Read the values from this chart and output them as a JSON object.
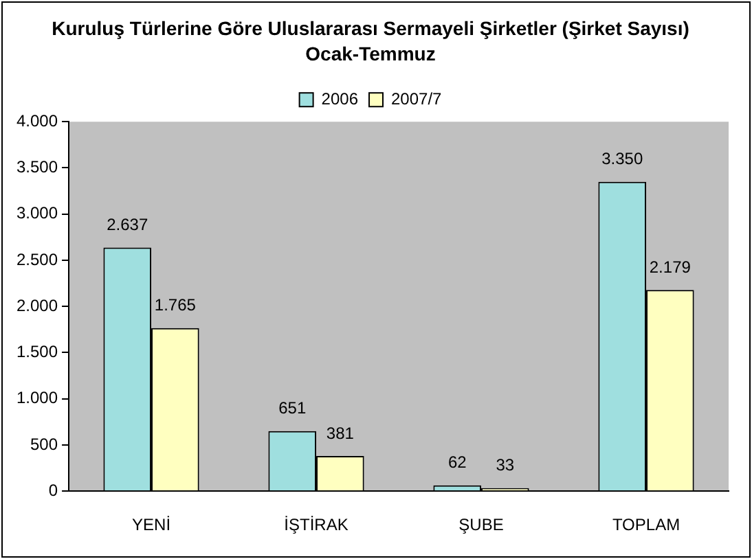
{
  "chart_data": {
    "type": "bar",
    "title": "Kuruluş Türlerine Göre Uluslararası Sermayeli Şirketler (Şirket Sayısı)",
    "subtitle": "Ocak-Temmuz",
    "categories": [
      "YENİ",
      "İŞTİRAK",
      "ŞUBE",
      "TOPLAM"
    ],
    "series": [
      {
        "name": "2006",
        "color": "#9fdfdf",
        "values": [
          2637,
          651,
          62,
          3350
        ],
        "value_labels": [
          "2.637",
          "651",
          "62",
          "3.350"
        ]
      },
      {
        "name": "2007/7",
        "color": "#ffffc0",
        "values": [
          1765,
          381,
          33,
          2179
        ],
        "value_labels": [
          "1.765",
          "381",
          "33",
          "2.179"
        ]
      }
    ],
    "ylim": [
      0,
      4000
    ],
    "yticks": [
      0,
      {
        "value": 500,
        "label": "500"
      },
      {
        "value": 1000,
        "label": "1.000"
      },
      {
        "value": 1500,
        "label": "1.500"
      },
      {
        "value": 2000,
        "label": "2.000"
      },
      {
        "value": 2500,
        "label": "2.500"
      },
      {
        "value": 3000,
        "label": "3.000"
      },
      {
        "value": 3500,
        "label": "3.500"
      },
      {
        "value": 4000,
        "label": "4.000"
      }
    ],
    "grid": false,
    "legend": "top"
  }
}
